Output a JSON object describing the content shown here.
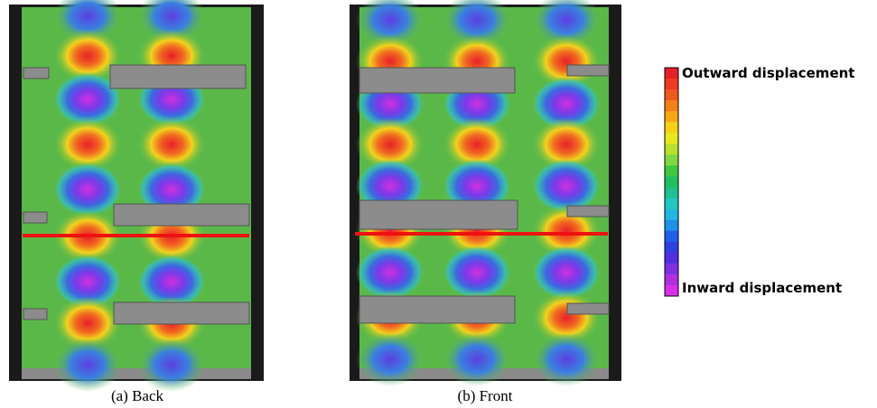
{
  "panels": [
    {
      "caption": "(a) Back"
    },
    {
      "caption": "(b) Front"
    }
  ],
  "colorbar": {
    "top_label": "Outward displacement",
    "bottom_label": "Inward displacement"
  }
}
